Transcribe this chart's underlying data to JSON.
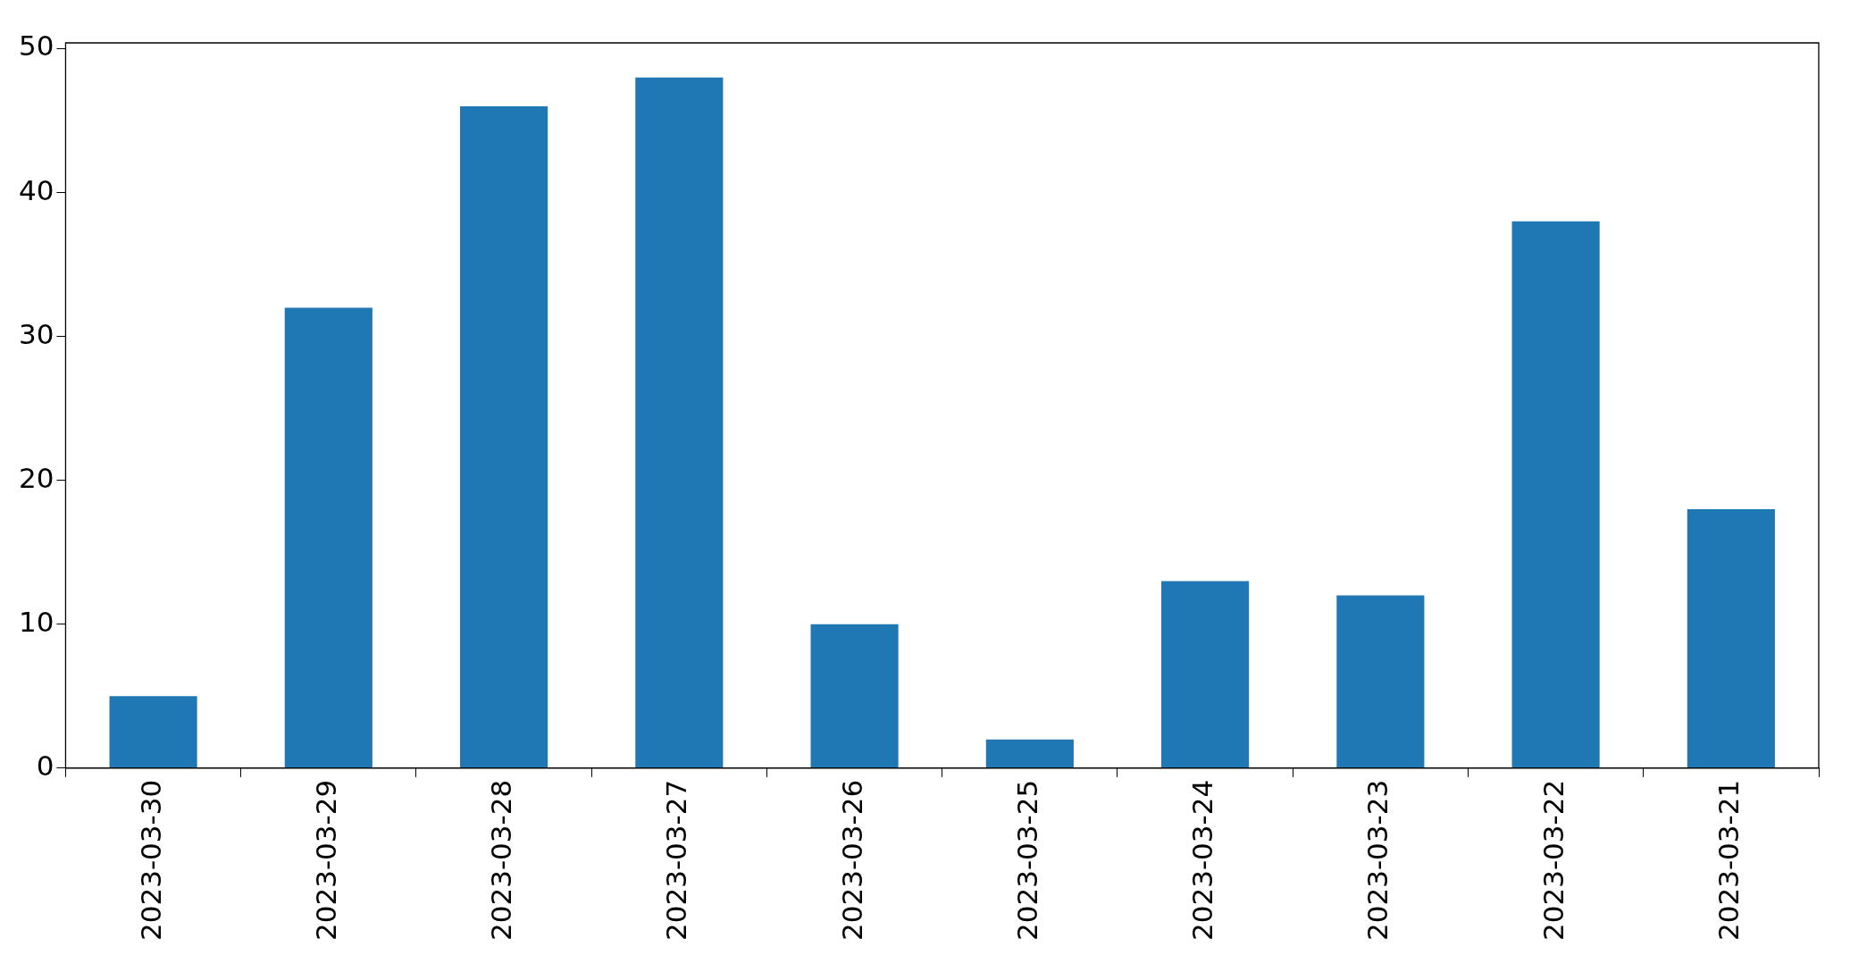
{
  "chart_data": {
    "type": "bar",
    "categories": [
      "2023-03-30",
      "2023-03-29",
      "2023-03-28",
      "2023-03-27",
      "2023-03-26",
      "2023-03-25",
      "2023-03-24",
      "2023-03-23",
      "2023-03-22",
      "2023-03-21"
    ],
    "values": [
      5,
      32,
      46,
      48,
      10,
      2,
      13,
      12,
      38,
      18
    ],
    "color": "#1f77b4",
    "ylim": [
      0,
      50.4
    ],
    "yticks": [
      0,
      10,
      20,
      30,
      40,
      50
    ]
  }
}
